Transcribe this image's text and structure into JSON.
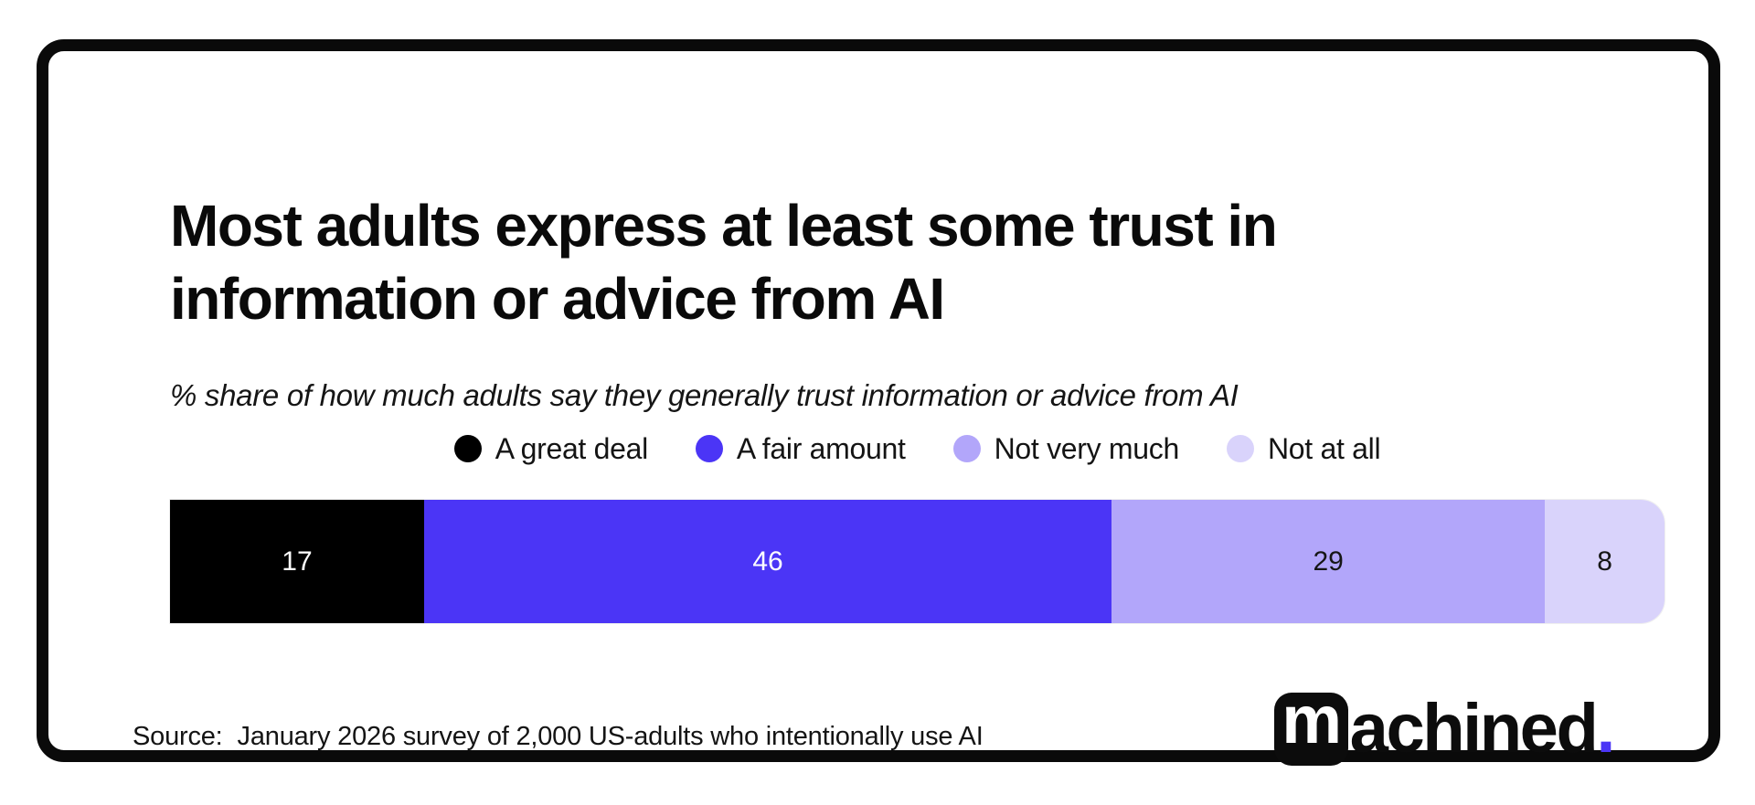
{
  "header": {
    "title_line1": "Most adults express at least some trust in",
    "title_line2": "information or advice from AI",
    "subtitle": "% share of how much adults say they generally trust information or advice from AI"
  },
  "chart_data": {
    "type": "bar",
    "variant": "horizontal-stacked-single-bar",
    "title": "Most adults express at least some trust in information or advice from AI",
    "subtitle": "% share of how much adults say they generally trust information or advice from AI",
    "categories": [
      "A great deal",
      "A fair amount",
      "Not very much",
      "Not at all"
    ],
    "values": [
      17,
      46,
      29,
      8
    ],
    "unit": "%",
    "xlim": [
      0,
      100
    ],
    "colors": [
      "#000000",
      "#4B35F6",
      "#B2A6FA",
      "#D9D3FB"
    ],
    "value_label_colors": [
      "#ffffff",
      "#ffffff",
      "#161616",
      "#161616"
    ],
    "legend_position": "top-center",
    "grid": false,
    "axes_shown": false
  },
  "footer": {
    "source_label": "Source:",
    "source_text": "January 2026 survey of 2,000 US-adults who intentionally use AI",
    "brand": {
      "logo_m": "m",
      "logo_rest": "achined",
      "logo_period": ".",
      "accent_color": "#4B35F6"
    }
  }
}
